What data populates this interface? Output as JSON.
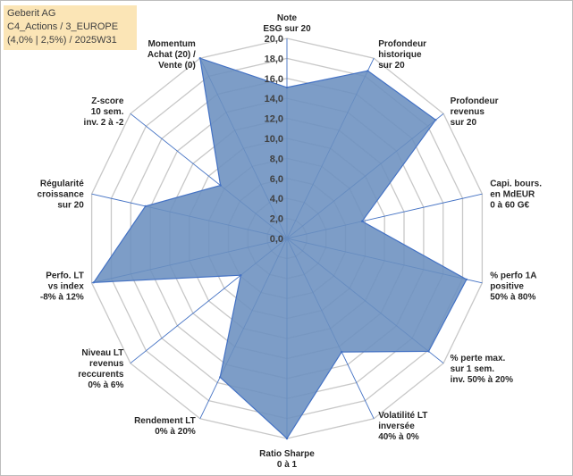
{
  "header": {
    "lines": [
      "Geberit AG",
      "C4_Actions / 3_EUROPE",
      "(4,0% | 2,5%) / 2025W31"
    ]
  },
  "colors": {
    "fill": "#6b8fbf",
    "stroke": "#4472c4",
    "grid": "#c8c8c8",
    "title_bg": "#fbe5b6"
  },
  "chart_data": {
    "type": "radar",
    "title": "",
    "range": [
      0,
      20
    ],
    "tick_step": 2,
    "tick_labels": [
      "0,0",
      "2,0",
      "4,0",
      "6,0",
      "8,0",
      "10,0",
      "12,0",
      "14,0",
      "16,0",
      "18,0",
      "20,0"
    ],
    "legend": "none",
    "grid": true,
    "axes": [
      {
        "label": [
          "Note",
          "ESG sur 20"
        ],
        "value": 15.1
      },
      {
        "label": [
          "Profondeur",
          "historique",
          "sur 20"
        ],
        "value": 18.6
      },
      {
        "label": [
          "Profondeur",
          "revenus",
          "sur 20"
        ],
        "value": 19.0
      },
      {
        "label": [
          "Capi. bours.",
          "en MdEUR",
          "0 à 60 G€"
        ],
        "value": 7.7
      },
      {
        "label": [
          "% perfo 1A",
          "positive",
          "50% à 80%"
        ],
        "value": 18.4
      },
      {
        "label": [
          "% perte max.",
          "sur 1 sem.",
          "inv. 50% à 20%"
        ],
        "value": 18.1
      },
      {
        "label": [
          "Volatilité LT",
          "inversée",
          "40% à 0%"
        ],
        "value": 12.6
      },
      {
        "label": [
          "Ratio Sharpe",
          "0 à 1"
        ],
        "value": 20.0
      },
      {
        "label": [
          "Rendement LT",
          "0% à 20%"
        ],
        "value": 15.4
      },
      {
        "label": [
          "Niveau LT",
          "revenus",
          "reccurents",
          "0% à 6%"
        ],
        "value": 5.9
      },
      {
        "label": [
          "Perfo. LT",
          "vs index",
          "-8% à 12%"
        ],
        "value": 19.8
      },
      {
        "label": [
          "Régularité",
          "croissance",
          "sur 20"
        ],
        "value": 14.5
      },
      {
        "label": [
          "Z-score",
          "10 sem.",
          "inv. 2 à -2"
        ],
        "value": 8.5
      },
      {
        "label": [
          "Momentum",
          "Achat (20) /",
          "Vente (0)"
        ],
        "value": 20.0
      }
    ]
  }
}
